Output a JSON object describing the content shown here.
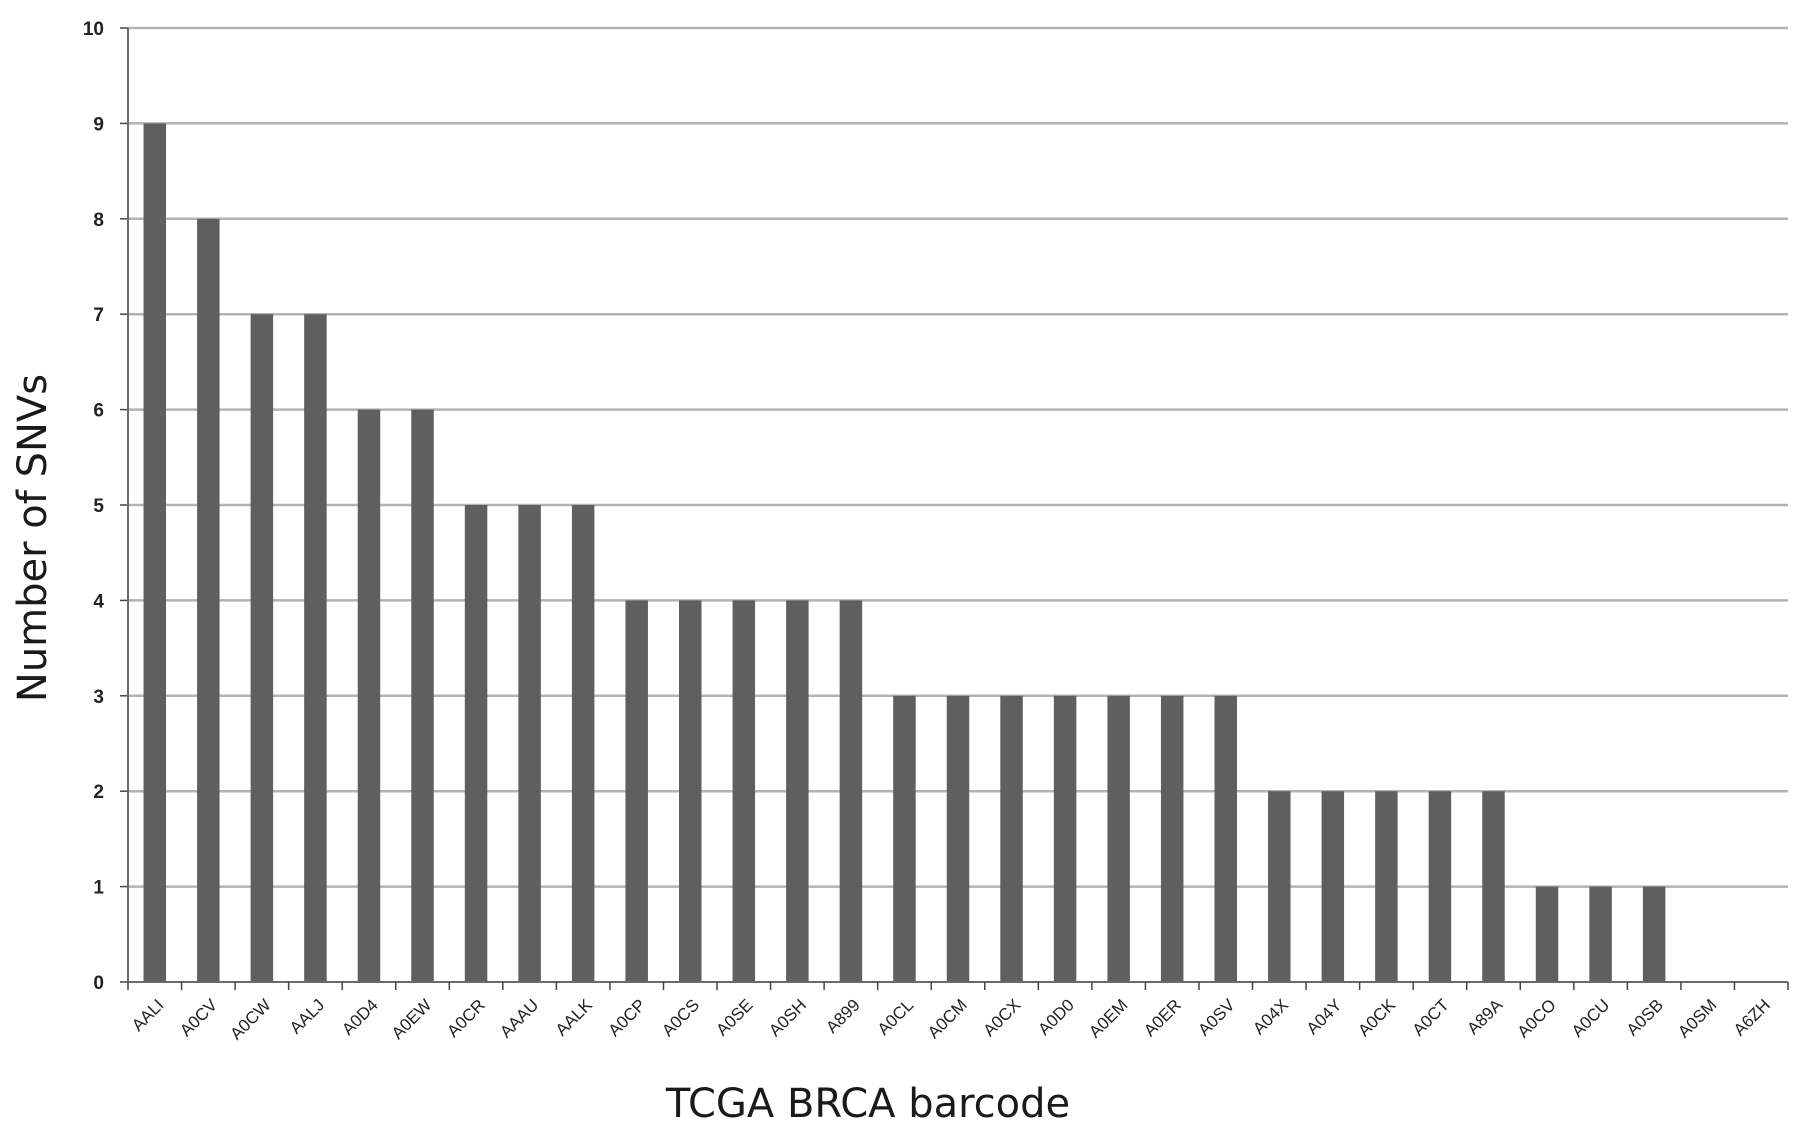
{
  "chart_data": {
    "type": "bar",
    "title": "",
    "xlabel": "TCGA BRCA barcode",
    "ylabel": "Number of SNVs",
    "ylim": [
      0,
      10
    ],
    "yticks": [
      0,
      1,
      2,
      3,
      4,
      5,
      6,
      7,
      8,
      9,
      10
    ],
    "grid": true,
    "legend": "none",
    "bar_color": "#5f5f5f",
    "grid_color": "#b3b3b3",
    "categories": [
      "AALI",
      "A0CV",
      "A0CW",
      "AALJ",
      "A0D4",
      "A0EW",
      "A0CR",
      "AAAU",
      "AALK",
      "A0CP",
      "A0CS",
      "A0SE",
      "A0SH",
      "A899",
      "A0CL",
      "A0CM",
      "A0CX",
      "A0D0",
      "A0EM",
      "A0ER",
      "A0SV",
      "A04X",
      "A04Y",
      "A0CK",
      "A0CT",
      "A89A",
      "A0CO",
      "A0CU",
      "A0SB",
      "A0SM",
      "A6ZH"
    ],
    "values": [
      9,
      8,
      7,
      7,
      6,
      6,
      5,
      5,
      5,
      4,
      4,
      4,
      4,
      4,
      3,
      3,
      3,
      3,
      3,
      3,
      3,
      2,
      2,
      2,
      2,
      2,
      1,
      1,
      1,
      0,
      0
    ]
  }
}
